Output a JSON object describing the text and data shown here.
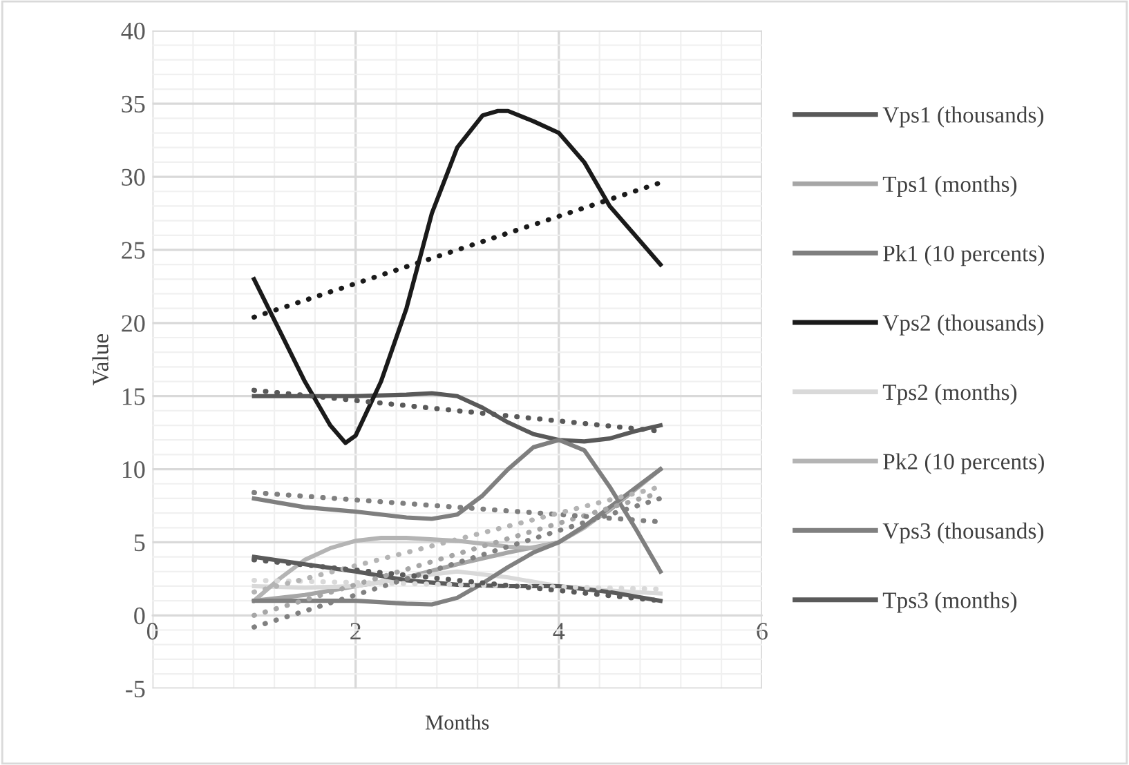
{
  "chart_data": {
    "type": "line",
    "xlabel": "Months",
    "ylabel": "Value",
    "xlim": [
      0,
      6
    ],
    "xticks": [
      0,
      2,
      4,
      6
    ],
    "ylim": [
      -5,
      40
    ],
    "yticks": [
      -5,
      0,
      5,
      10,
      15,
      20,
      25,
      30,
      35,
      40
    ],
    "grid": true,
    "legend": "right",
    "marker": "none",
    "line_style": "solid",
    "series": [
      {
        "name": "Vps1 (thousands)",
        "color": "#595959",
        "x": [
          1,
          1.5,
          2,
          2.5,
          2.75,
          3,
          3.25,
          3.5,
          3.75,
          4,
          4.25,
          4.5,
          4.75,
          5
        ],
        "values": [
          15,
          15,
          15,
          15.1,
          15.2,
          15,
          14.2,
          13.2,
          12.4,
          12,
          11.9,
          12.1,
          12.6,
          13
        ]
      },
      {
        "name": "Tps1 (months)",
        "color": "#a6a6a6",
        "x": [
          1,
          1.5,
          2,
          2.5,
          3,
          3.5,
          4,
          4.5,
          5
        ],
        "values": [
          1,
          1.4,
          2,
          2.6,
          3.5,
          4.3,
          5,
          7.2,
          10
        ]
      },
      {
        "name": "Pk1 (10 percents)",
        "color": "#7f7f7f",
        "x": [
          1,
          1.5,
          2,
          2.5,
          2.75,
          3,
          3.25,
          3.5,
          3.75,
          4,
          4.25,
          4.5,
          4.75,
          5
        ],
        "values": [
          8,
          7.4,
          7.1,
          6.7,
          6.6,
          6.9,
          8.2,
          10,
          11.5,
          12,
          11.3,
          8.8,
          6,
          3
        ]
      },
      {
        "name": "Vps2 (thousands)",
        "color": "#1a1a1a",
        "x": [
          1,
          1.25,
          1.5,
          1.75,
          1.9,
          2,
          2.25,
          2.5,
          2.75,
          3,
          3.25,
          3.4,
          3.5,
          3.75,
          4,
          4.25,
          4.5,
          4.75,
          5
        ],
        "values": [
          23,
          19.5,
          16,
          13,
          11.8,
          12.3,
          16,
          21,
          27.5,
          32,
          34.2,
          34.5,
          34.5,
          33.8,
          33,
          31,
          28,
          26,
          24
        ]
      },
      {
        "name": "Tps2 (months)",
        "color": "#d9d9d9",
        "x": [
          1,
          1.5,
          2,
          2.5,
          3,
          3.5,
          4,
          4.5,
          5
        ],
        "values": [
          2,
          1.9,
          2,
          2.6,
          3,
          2.6,
          2,
          1.7,
          1.5
        ]
      },
      {
        "name": "Pk2 (10 percents)",
        "color": "#b4b4b4",
        "x": [
          1,
          1.25,
          1.5,
          1.75,
          2,
          2.25,
          2.5,
          3,
          3.5,
          3.75,
          4,
          4.25,
          4.5,
          4.75,
          5
        ],
        "values": [
          1,
          2.5,
          3.8,
          4.6,
          5.1,
          5.3,
          5.3,
          5.1,
          4.7,
          4.6,
          5,
          6,
          7.3,
          8.7,
          10
        ]
      },
      {
        "name": "Vps3 (thousands)",
        "color": "#808080",
        "x": [
          1,
          1.5,
          2,
          2.5,
          2.75,
          3,
          3.25,
          3.5,
          3.75,
          4,
          4.25,
          4.5,
          4.75,
          5
        ],
        "values": [
          1,
          1,
          1,
          0.8,
          0.75,
          1.2,
          2.2,
          3.3,
          4.3,
          5,
          6.1,
          7.4,
          8.7,
          10
        ]
      },
      {
        "name": "Tps3 (months)",
        "color": "#5a5a5a",
        "x": [
          1,
          1.5,
          2,
          2.5,
          3,
          3.5,
          4,
          4.5,
          5
        ],
        "values": [
          4,
          3.5,
          3,
          2.4,
          2.1,
          2,
          2,
          1.6,
          1
        ]
      },
      {
        "type": "line",
        "line_style": "dotted",
        "color": "#595959",
        "x": [
          1,
          5
        ],
        "values": [
          15.4,
          12.6
        ]
      },
      {
        "type": "line",
        "line_style": "dotted",
        "color": "#a6a6a6",
        "x": [
          1,
          5
        ],
        "values": [
          0,
          8.4
        ]
      },
      {
        "type": "line",
        "line_style": "dotted",
        "color": "#7f7f7f",
        "x": [
          1,
          5
        ],
        "values": [
          8.4,
          6.4
        ]
      },
      {
        "type": "line",
        "line_style": "dotted",
        "color": "#1a1a1a",
        "x": [
          1,
          5
        ],
        "values": [
          20.4,
          29.6
        ]
      },
      {
        "type": "line",
        "line_style": "dotted",
        "color": "#d9d9d9",
        "x": [
          1,
          5
        ],
        "values": [
          2.4,
          1.8
        ]
      },
      {
        "type": "line",
        "line_style": "dotted",
        "color": "#b4b4b4",
        "x": [
          1,
          5
        ],
        "values": [
          1.6,
          8.8
        ]
      },
      {
        "type": "line",
        "line_style": "dotted",
        "color": "#808080",
        "x": [
          1,
          5
        ],
        "values": [
          -0.8,
          8
        ]
      },
      {
        "type": "line",
        "line_style": "dotted",
        "color": "#5a5a5a",
        "x": [
          1,
          5
        ],
        "values": [
          3.8,
          1
        ]
      }
    ]
  }
}
